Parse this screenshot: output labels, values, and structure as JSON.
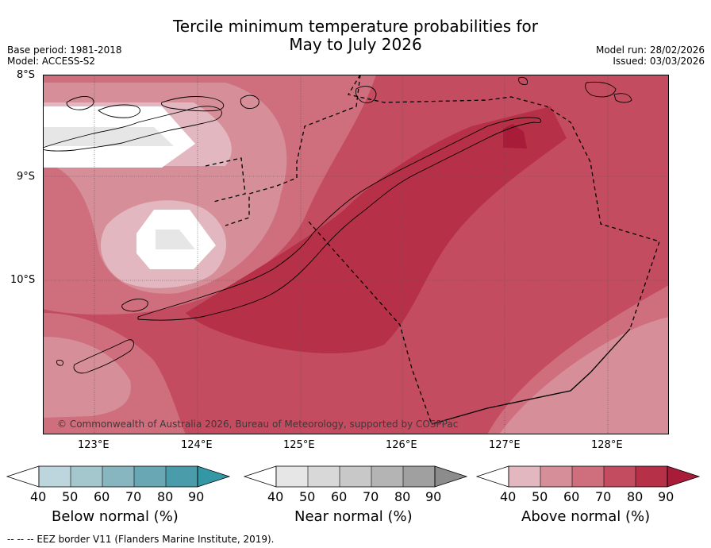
{
  "title_line1": "Tercile minimum temperature probabilities for",
  "title_line2": "May to July 2026",
  "meta_left": {
    "base_period": "Base period: 1981-2018",
    "model": "Model: ACCESS-S2"
  },
  "meta_right": {
    "model_run": "Model run: 28/02/2026",
    "issued": "Issued: 03/03/2026"
  },
  "y_ticks": [
    "8°S",
    "9°S",
    "10°S"
  ],
  "x_ticks": [
    "123°E",
    "124°E",
    "125°E",
    "126°E",
    "127°E",
    "128°E"
  ],
  "copyright": "© Commonwealth of Australia 2026, Bureau of Meteorology, supported by COSPPac",
  "colorbars": [
    {
      "label": "Below normal (%)",
      "ticks": [
        "40",
        "50",
        "60",
        "70",
        "80",
        "90"
      ],
      "colors": [
        "#bdd5dc",
        "#a4c6cd",
        "#87b5c0",
        "#6aa7b5",
        "#4a9cab"
      ],
      "low_color": "#ffffff",
      "high_color": "#3397a6"
    },
    {
      "label": "Near normal (%)",
      "ticks": [
        "40",
        "50",
        "60",
        "70",
        "80",
        "90"
      ],
      "colors": [
        "#e6e6e6",
        "#d8d8d8",
        "#c8c8c8",
        "#b4b4b4",
        "#a0a0a0"
      ],
      "low_color": "#ffffff",
      "high_color": "#8c8c8c"
    },
    {
      "label": "Above normal (%)",
      "ticks": [
        "40",
        "50",
        "60",
        "70",
        "80",
        "90"
      ],
      "colors": [
        "#e2b7bf",
        "#d68e99",
        "#cf6f7d",
        "#c44c60",
        "#b63048"
      ],
      "low_color": "#ffffff",
      "high_color": "#a81c3a"
    }
  ],
  "footer": "-- -- -- EEZ border V11 (Flanders Marine Institute, 2019).",
  "map_colors": {
    "a40": "#e2b7bf",
    "a50": "#d68e99",
    "a60": "#cf6f7d",
    "a70": "#c44c60",
    "a80": "#b63048",
    "a90": "#a81c3a",
    "n40": "#e6e6e6",
    "n50": "#d8d8d8"
  }
}
